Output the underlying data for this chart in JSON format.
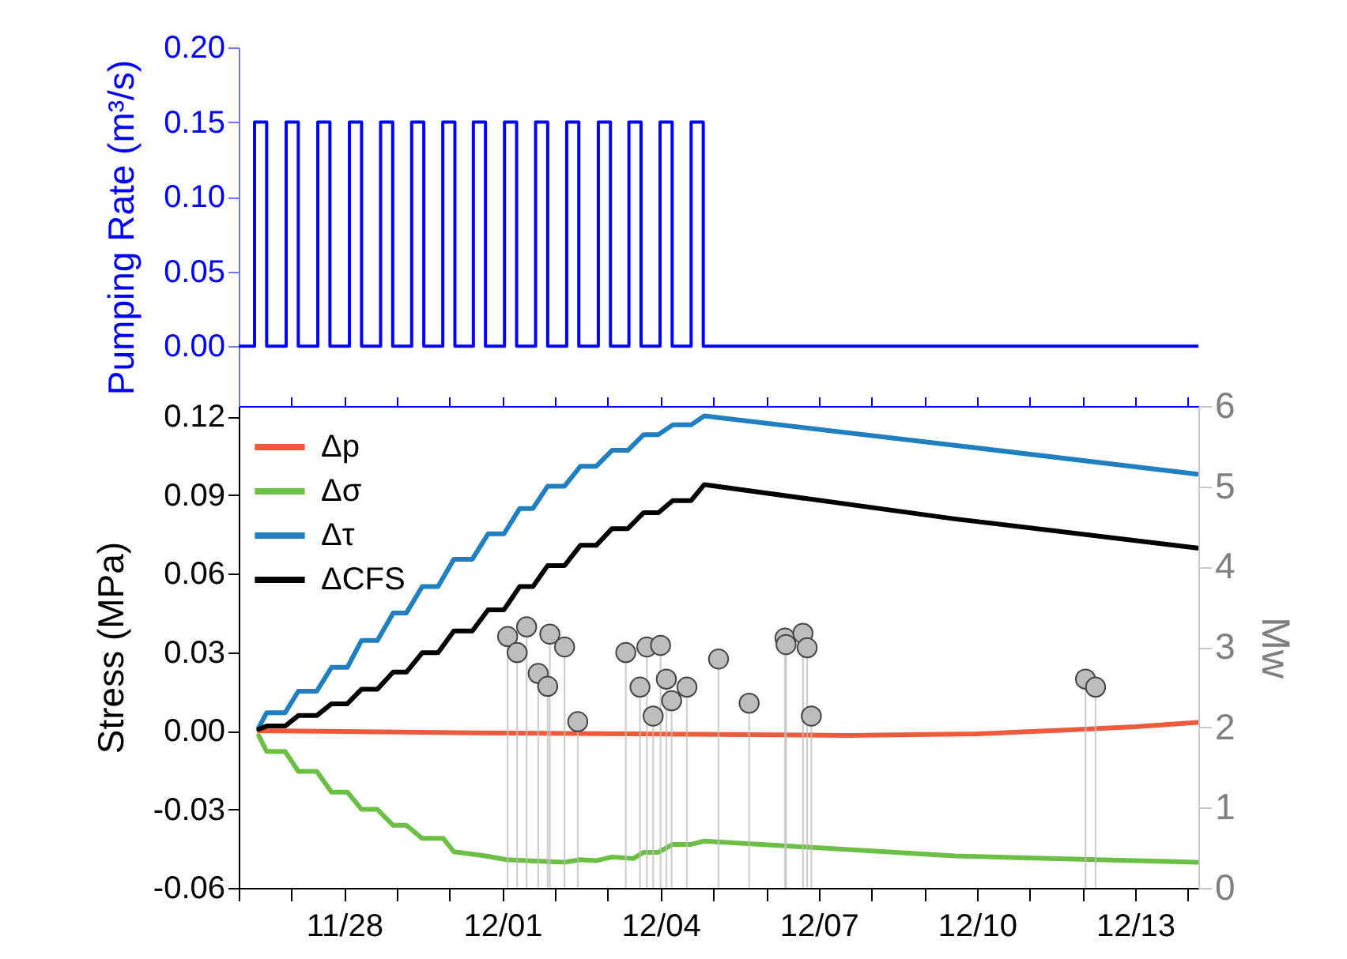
{
  "chart_data": [
    {
      "type": "step",
      "ylabel": "Pumping Rate (m³/s)",
      "xlim": [
        "--11-26",
        "--12-14T04:48"
      ],
      "xticks": [
        {
          "value": "--11-26",
          "label": null
        },
        {
          "value": "--11-27",
          "label": null
        },
        {
          "value": "--11-28",
          "label": null
        },
        {
          "value": "--11-29",
          "label": null
        },
        {
          "value": "--11-30",
          "label": null
        },
        {
          "value": "--12-01",
          "label": null
        },
        {
          "value": "--12-02",
          "label": null
        },
        {
          "value": "--12-03",
          "label": null
        },
        {
          "value": "--12-04",
          "label": null
        },
        {
          "value": "--12-05",
          "label": null
        },
        {
          "value": "--12-06",
          "label": null
        },
        {
          "value": "--12-07",
          "label": null
        },
        {
          "value": "--12-08",
          "label": null
        },
        {
          "value": "--12-09",
          "label": null
        },
        {
          "value": "--12-10",
          "label": null
        },
        {
          "value": "--12-11",
          "label": null
        },
        {
          "value": "--12-12",
          "label": null
        },
        {
          "value": "--12-13",
          "label": null
        },
        {
          "value": "--12-14",
          "label": null
        }
      ],
      "ylim": [
        -0.04,
        0.2
      ],
      "yticks": [
        {
          "value": 0,
          "label": "0.00"
        },
        0.05,
        {
          "value": 0.1,
          "label": "0.10"
        },
        0.15,
        {
          "value": 0.2,
          "label": "0.20"
        }
      ],
      "tick_labels": "y",
      "series": [
        {
          "color": "#0000ff",
          "x": [
            "--11-26",
            "--11-26T07:12",
            "--11-26T12:43",
            "--11-26T21:36",
            "--11-27T03:07",
            "--11-27T12:00",
            "--11-27T17:31",
            "--11-28T02:24",
            "--11-28T07:55",
            "--11-28T16:34",
            "--11-28T22:05",
            "--11-29T06:43",
            "--11-29T12:14",
            "--11-29T20:53",
            "--11-30T02:24",
            "--11-30T10:48",
            "--11-30T16:19",
            "--12-01T00:58",
            "--12-01T06:29",
            "--12-01T15:07",
            "--12-01T20:38",
            "--12-02T05:17",
            "--12-02T10:48",
            "--12-02T19:41",
            "--12-03T01:12",
            "--12-03T09:36",
            "--12-03T15:07",
            "--12-03T23:46",
            "--12-04T05:17",
            "--12-04T13:55",
            "--12-04T19:26",
            "--12-14T04:48"
          ],
          "values": [
            0,
            0.15,
            0,
            0.15,
            0,
            0.15,
            0,
            0.15,
            0,
            0.15,
            0,
            0.15,
            0,
            0.15,
            0,
            0.15,
            0,
            0.15,
            0,
            0.15,
            0,
            0.15,
            0,
            0.15,
            0,
            0.15,
            0,
            0.15,
            0,
            0.15,
            0,
            0
          ]
        }
      ]
    },
    {
      "type": "line",
      "ylabel": "Stress (MPa)",
      "y2label": "Mw",
      "legend": "top left",
      "xlim": [
        "--11-26",
        "--12-14T04:48"
      ],
      "xticks": [
        {
          "value": "--11-26",
          "label": null
        },
        {
          "value": "--11-27",
          "label": null
        },
        {
          "value": "--11-28",
          "label": "11/28"
        },
        {
          "value": "--11-29",
          "label": null
        },
        {
          "value": "--11-30",
          "label": null
        },
        {
          "value": "--12-01",
          "label": "12/01"
        },
        {
          "value": "--12-02",
          "label": null
        },
        {
          "value": "--12-03",
          "label": null
        },
        {
          "value": "--12-04",
          "label": "12/04"
        },
        {
          "value": "--12-05",
          "label": null
        },
        {
          "value": "--12-06",
          "label": null
        },
        {
          "value": "--12-07",
          "label": "12/07"
        },
        {
          "value": "--12-08",
          "label": null
        },
        {
          "value": "--12-09",
          "label": null
        },
        {
          "value": "--12-10",
          "label": "12/10"
        },
        {
          "value": "--12-11",
          "label": null
        },
        {
          "value": "--12-12",
          "label": null
        },
        {
          "value": "--12-13",
          "label": "12/13"
        },
        {
          "value": "--12-14",
          "label": null
        }
      ],
      "ylim": [
        -0.06,
        0.124
      ],
      "yticks": [
        {
          "value": -0.06,
          "label": "-0.06"
        },
        {
          "value": -0.03,
          "label": "-0.03"
        },
        {
          "value": 0,
          "label": "0.00"
        },
        0.03,
        0.06,
        0.09,
        0.12
      ],
      "y2lim": [
        0,
        6
      ],
      "y2ticks": [
        0,
        1,
        2,
        3,
        4,
        5,
        6
      ],
      "series": [
        {
          "name": "Δp",
          "color": "#f05a3c",
          "x": [
            "--11-26T09:07",
            "--11-30T12:00",
            "--12-04T13:55",
            "--12-07T13:55",
            "--12-10",
            "--12-11T13:55",
            "--12-13",
            "--12-14T04:19"
          ],
          "values": [
            0,
            -0.0008,
            -0.0013,
            -0.0018,
            -0.0012,
            0.0002,
            0.0015,
            0.0032
          ]
        },
        {
          "name": "Δσ",
          "color": "#6cbf45",
          "x": [
            "--11-26T09:07",
            "--11-26T12:43",
            "--11-26T21:07",
            "--11-27T03:07",
            "--11-27T11:31",
            "--11-27T18:14",
            "--11-28T01:26",
            "--11-28T07:55",
            "--11-28T15:07",
            "--11-28T22:19",
            "--11-29T04:19",
            "--11-29T11:31",
            "--11-29T21:07",
            "--11-30T01:55",
            "--11-30T16:19",
            "--12-01T01:55",
            "--12-01T11:31",
            "--12-02T04:19",
            "--12-02T11:31",
            "--12-02T18:43",
            "--12-03T01:55",
            "--12-03T11:31",
            "--12-03T16:19",
            "--12-03T23:02",
            "--12-04T05:31",
            "--12-04T13:55",
            "--12-04T19:55",
            "--12-09T13:55",
            "--12-14T04:19"
          ],
          "values": [
            -0.0018,
            -0.0079,
            -0.0079,
            -0.0155,
            -0.0155,
            -0.0234,
            -0.0234,
            -0.03,
            -0.03,
            -0.0361,
            -0.0361,
            -0.0411,
            -0.0411,
            -0.0462,
            -0.0478,
            -0.0492,
            -0.0496,
            -0.0502,
            -0.0492,
            -0.0496,
            -0.0482,
            -0.0488,
            -0.0464,
            -0.0464,
            -0.0434,
            -0.0434,
            -0.0421,
            -0.0478,
            -0.0502
          ]
        },
        {
          "name": "Δτ",
          "color": "#1f7fc1",
          "x": [
            "--11-26T09:07",
            "--11-26T12:43",
            "--11-26T21:07",
            "--11-27T03:07",
            "--11-27T11:31",
            "--11-27T18:14",
            "--11-28T01:26",
            "--11-28T07:55",
            "--11-28T15:07",
            "--11-28T22:19",
            "--11-29T04:19",
            "--11-29T11:31",
            "--11-29T18:43",
            "--11-30T01:55",
            "--11-30T10:19",
            "--11-30T17:31",
            "--12-01T00:43",
            "--12-01T07:55",
            "--12-01T13:55",
            "--12-01T20:38",
            "--12-02T04:19",
            "--12-02T11:31",
            "--12-02T18:43",
            "--12-03T01:55",
            "--12-03T09:07",
            "--12-03T16:19",
            "--12-03T23:02",
            "--12-04T05:31",
            "--12-04T13:55",
            "--12-04T19:55",
            "--12-09T13:55",
            "--12-14T04:19"
          ],
          "values": [
            0.0012,
            0.0069,
            0.0069,
            0.0151,
            0.0151,
            0.0242,
            0.0242,
            0.0345,
            0.0345,
            0.045,
            0.045,
            0.0551,
            0.0551,
            0.0655,
            0.0655,
            0.0752,
            0.0752,
            0.0849,
            0.0849,
            0.0934,
            0.0934,
            0.101,
            0.101,
            0.1071,
            0.1071,
            0.1131,
            0.1131,
            0.1168,
            0.1168,
            0.1202,
            0.109,
            0.098
          ]
        },
        {
          "name": "ΔCFS",
          "color": "#000000",
          "x": [
            "--11-26T09:07",
            "--11-26T12:43",
            "--11-26T21:07",
            "--11-27T03:07",
            "--11-27T11:31",
            "--11-27T18:14",
            "--11-28T01:26",
            "--11-28T07:55",
            "--11-28T15:07",
            "--11-28T22:19",
            "--11-29T04:19",
            "--11-29T11:31",
            "--11-29T18:43",
            "--11-30T01:55",
            "--11-30T10:19",
            "--11-30T17:31",
            "--12-01T00:43",
            "--12-01T07:55",
            "--12-01T13:55",
            "--12-01T20:38",
            "--12-02T04:19",
            "--12-02T11:31",
            "--12-02T18:43",
            "--12-03T01:55",
            "--12-03T09:07",
            "--12-03T16:19",
            "--12-03T23:02",
            "--12-04T05:31",
            "--12-04T13:55",
            "--12-04T19:55",
            "--12-09T13:55",
            "--12-14T04:19"
          ],
          "values": [
            0.0006,
            0.0018,
            0.0018,
            0.0058,
            0.0058,
            0.0103,
            0.0103,
            0.0159,
            0.0159,
            0.0224,
            0.0224,
            0.0298,
            0.0298,
            0.0381,
            0.0381,
            0.0462,
            0.0462,
            0.0551,
            0.0551,
            0.0631,
            0.0631,
            0.0708,
            0.0708,
            0.0772,
            0.0772,
            0.0833,
            0.0833,
            0.0879,
            0.0879,
            0.094,
            0.0809,
            0.0698
          ]
        },
        {
          "type": "lollipop",
          "axis": "y2",
          "marker": "circle",
          "color": "#bdbdbd",
          "x": [
            "--12-01T02:24",
            "--12-01T06:43",
            "--12-01T11:02",
            "--12-01T16:19",
            "--12-01T20:38",
            "--12-01T21:36",
            "--12-02T04:19",
            "--12-02T10:19",
            "--12-03T08:10",
            "--12-03T14:38",
            "--12-03T17:46",
            "--12-03T20:38",
            "--12-04",
            "--12-04T02:38",
            "--12-04T05:02",
            "--12-04T12:00",
            "--12-05T02:24",
            "--12-05T16:19",
            "--12-06T08:38",
            "--12-06T09:07",
            "--12-06T16:48",
            "--12-06T18:43",
            "--12-06T20:38",
            "--12-12T01:26",
            "--12-12T06:00"
          ],
          "values": [
            3.13,
            2.93,
            3.25,
            2.67,
            2.51,
            3.16,
            3.0,
            2.07,
            2.93,
            2.5,
            3.0,
            2.14,
            3.02,
            2.6,
            2.33,
            2.5,
            2.85,
            2.3,
            3.11,
            3.03,
            3.17,
            2.99,
            2.14,
            2.6,
            2.5
          ]
        }
      ]
    }
  ]
}
